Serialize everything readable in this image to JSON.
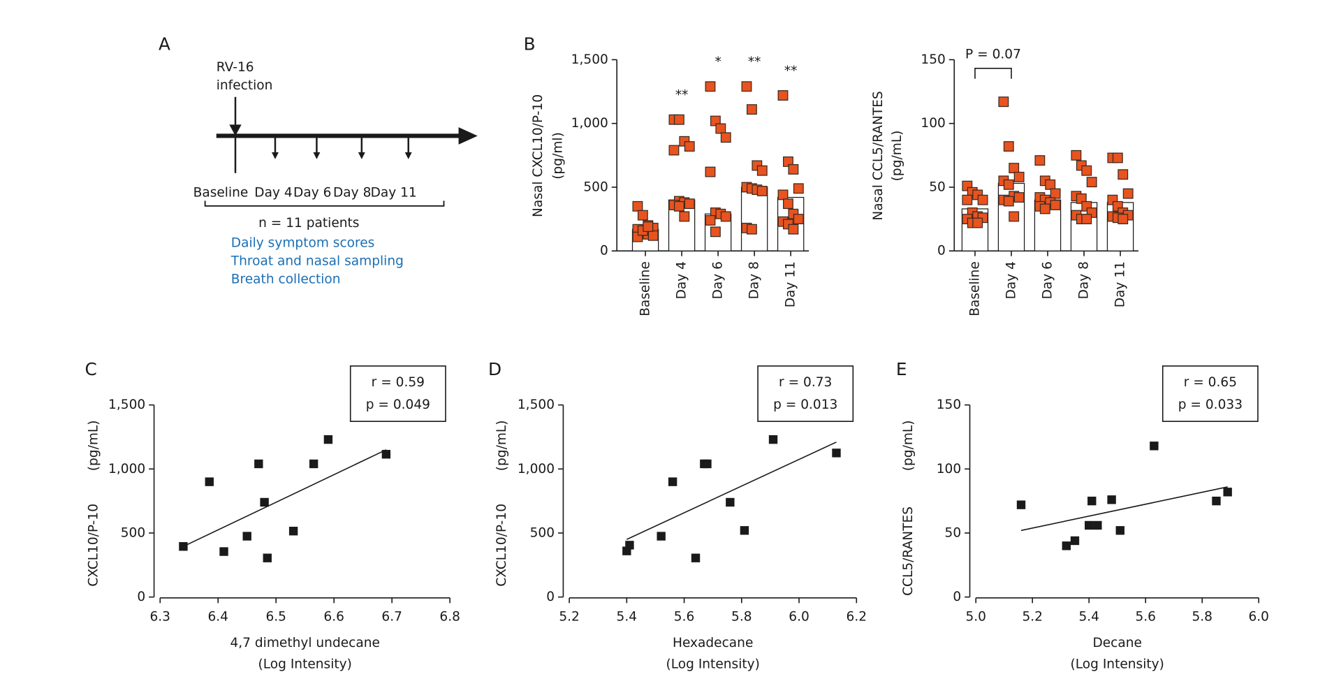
{
  "panel_a": {
    "label": "A",
    "event": [
      "RV-16",
      "infection"
    ],
    "timepoints": [
      "Baseline",
      "Day 4",
      "Day 6",
      "Day 8",
      "Day 11"
    ],
    "cohort": "n = 11 patients",
    "activities": [
      "Daily symptom scores",
      "Throat and nasal sampling",
      "Breath collection"
    ]
  },
  "chart_data": [
    {
      "type": "bar",
      "panel_label": "B",
      "ylabel": [
        "Nasal CXCL10/P-10",
        "(pg/ml)"
      ],
      "categories": [
        "Baseline",
        "Day 4",
        "Day 6",
        "Day 8",
        "Day 11"
      ],
      "values": [
        170,
        400,
        290,
        500,
        420
      ],
      "points": [
        [
          350,
          280,
          200,
          180,
          170,
          150,
          130,
          120,
          110,
          160,
          190
        ],
        [
          1030,
          1030,
          860,
          820,
          790,
          390,
          380,
          370,
          360,
          350,
          270
        ],
        [
          1290,
          1020,
          960,
          890,
          620,
          300,
          290,
          270,
          240,
          150
        ],
        [
          1290,
          1110,
          670,
          630,
          500,
          490,
          480,
          470,
          180,
          170
        ],
        [
          1220,
          700,
          640,
          490,
          440,
          370,
          290,
          250,
          230,
          210,
          170
        ]
      ],
      "significance": [
        null,
        "**",
        "*",
        "**",
        "**"
      ],
      "color": "#ffffff",
      "point_color": "#e8531f",
      "ylim": [
        0,
        1500
      ],
      "yticks": [
        0,
        500,
        {
          "value": 1000,
          "label": "1,000"
        },
        {
          "value": 1500,
          "label": "1,500"
        }
      ]
    },
    {
      "type": "bar",
      "ylabel": [
        "Nasal CCL5/RANTES",
        "(pg/mL)"
      ],
      "categories": [
        "Baseline",
        "Day 4",
        "Day 6",
        "Day 8",
        "Day 11"
      ],
      "values": [
        33,
        53,
        40,
        38,
        38
      ],
      "points": [
        [
          51,
          46,
          44,
          40,
          40,
          30,
          27,
          26,
          25,
          22,
          22
        ],
        [
          117,
          82,
          65,
          58,
          55,
          52,
          43,
          42,
          40,
          39,
          27
        ],
        [
          71,
          55,
          52,
          45,
          42,
          40,
          38,
          36,
          35,
          33
        ],
        [
          75,
          67,
          63,
          54,
          43,
          41,
          35,
          30,
          28,
          25,
          25
        ],
        [
          73,
          73,
          60,
          45,
          40,
          35,
          30,
          28,
          27,
          26,
          25
        ]
      ],
      "annotation": "P = 0.07",
      "color": "#ffffff",
      "point_color": "#e8531f",
      "ylim": [
        0,
        150
      ],
      "yticks": [
        0,
        50,
        100,
        150
      ]
    },
    {
      "type": "scatter",
      "panel_label": "C",
      "ylabel": [
        "CXCL10/P-10",
        "(pg/mL)"
      ],
      "xlabel": [
        "4,7 dimethyl undecane",
        "(Log Intensity)"
      ],
      "x": [
        6.34,
        6.385,
        6.41,
        6.45,
        6.47,
        6.48,
        6.485,
        6.53,
        6.565,
        6.59,
        6.69
      ],
      "y": [
        395,
        900,
        355,
        475,
        1040,
        740,
        305,
        515,
        1040,
        1230,
        1115
      ],
      "fit": {
        "x": [
          6.34,
          6.69
        ],
        "y": [
          395,
          1150
        ]
      },
      "stats": [
        "r = 0.59",
        "p = 0.049"
      ],
      "color": "#1a1a1a",
      "xlim": [
        6.3,
        6.8
      ],
      "xticks": [
        6.3,
        6.4,
        6.5,
        6.6,
        6.7,
        6.8
      ],
      "ylim": [
        0,
        1500
      ],
      "yticks": [
        0,
        500,
        {
          "value": 1000,
          "label": "1,000"
        },
        {
          "value": 1500,
          "label": "1,500"
        }
      ]
    },
    {
      "type": "scatter",
      "panel_label": "D",
      "ylabel": [
        "CXCL10/P-10",
        "(pg/mL)"
      ],
      "xlabel": [
        "Hexadecane",
        "(Log Intensity)"
      ],
      "x": [
        5.4,
        5.41,
        5.52,
        5.56,
        5.64,
        5.67,
        5.68,
        5.76,
        5.81,
        5.91,
        6.13
      ],
      "y": [
        360,
        405,
        475,
        900,
        305,
        1040,
        1040,
        740,
        520,
        1230,
        1125
      ],
      "fit": {
        "x": [
          5.4,
          6.13
        ],
        "y": [
          450,
          1210
        ]
      },
      "stats": [
        "r = 0.73",
        "p = 0.013"
      ],
      "color": "#1a1a1a",
      "xlim": [
        5.2,
        6.2
      ],
      "xticks": [
        5.2,
        5.4,
        5.6,
        5.8,
        {
          "value": 6,
          "label": "6.0"
        },
        6.2
      ],
      "ylim": [
        0,
        1500
      ],
      "yticks": [
        0,
        500,
        {
          "value": 1000,
          "label": "1,000"
        },
        {
          "value": 1500,
          "label": "1,500"
        }
      ]
    },
    {
      "type": "scatter",
      "panel_label": "E",
      "ylabel": [
        "CCL5/RANTES",
        "(pg/mL)"
      ],
      "xlabel": [
        "Decane",
        "(Log Intensity)"
      ],
      "x": [
        5.16,
        5.32,
        5.35,
        5.4,
        5.41,
        5.43,
        5.48,
        5.51,
        5.63,
        5.85,
        5.89
      ],
      "y": [
        72,
        40,
        44,
        56,
        75,
        56,
        76,
        52,
        118,
        75,
        82
      ],
      "fit": {
        "x": [
          5.16,
          5.89
        ],
        "y": [
          52,
          86
        ]
      },
      "stats": [
        "r = 0.65",
        "p = 0.033"
      ],
      "color": "#1a1a1a",
      "xlim": [
        5,
        6
      ],
      "xticks": [
        {
          "value": 5,
          "label": "5.0"
        },
        5.2,
        5.4,
        5.6,
        5.8,
        {
          "value": 6,
          "label": "6.0"
        }
      ],
      "ylim": [
        0,
        150
      ],
      "yticks": [
        0,
        50,
        100,
        150
      ]
    }
  ]
}
